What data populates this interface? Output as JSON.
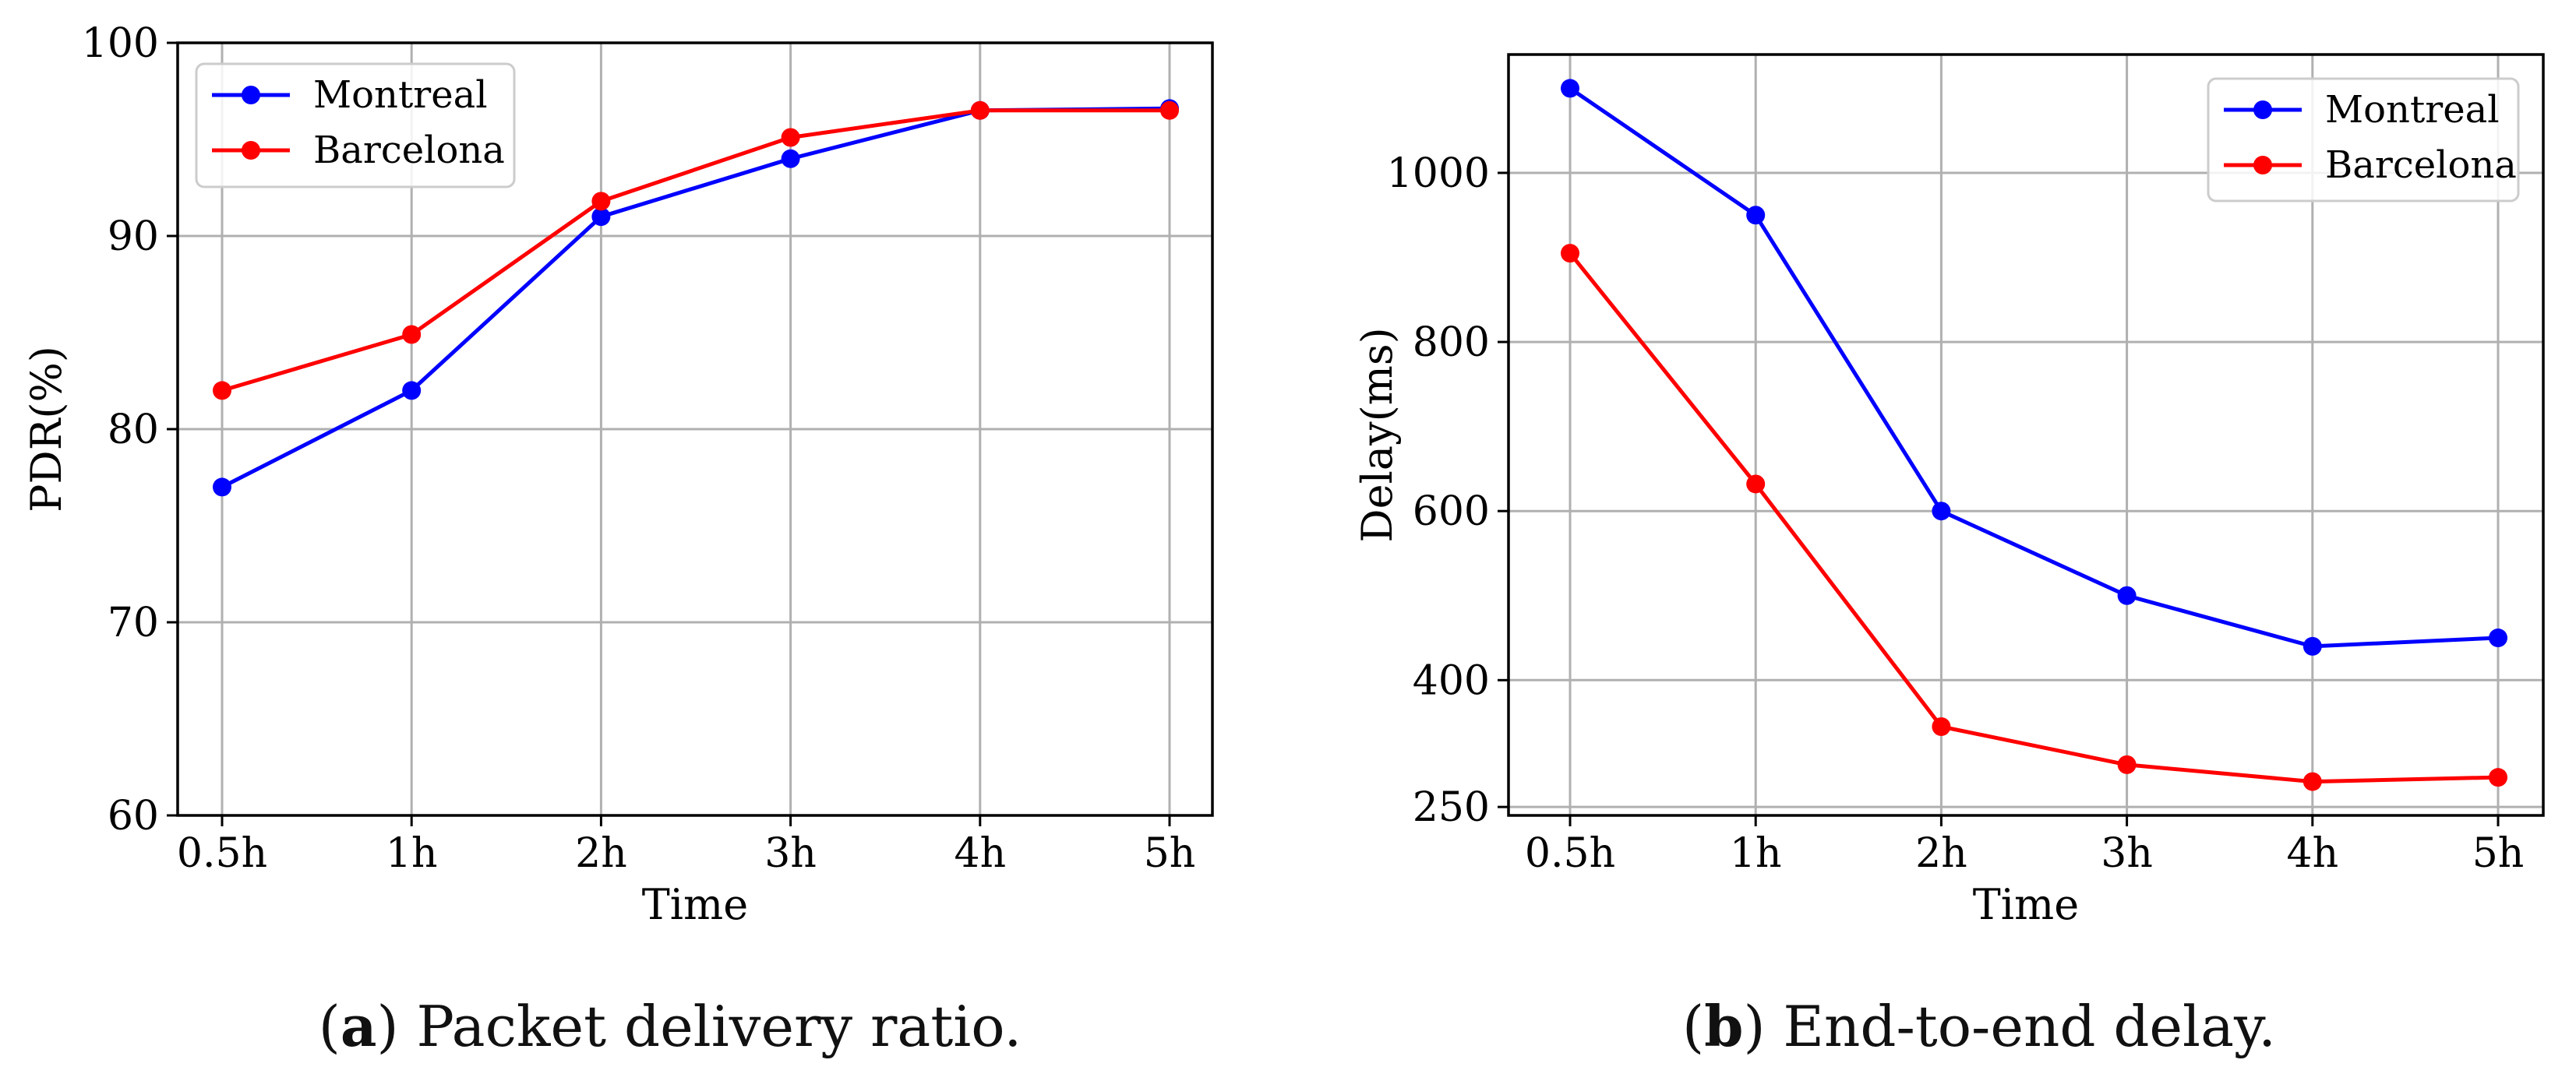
{
  "chart_data": [
    {
      "type": "line",
      "panel": "a",
      "title": "",
      "xlabel": "Time",
      "ylabel": "PDR(%)",
      "categories": [
        "0.5h",
        "1h",
        "2h",
        "3h",
        "4h",
        "5h"
      ],
      "ylim": [
        60,
        100
      ],
      "yticks": [
        60,
        70,
        80,
        90,
        100
      ],
      "grid": true,
      "legend": "top-left",
      "series": [
        {
          "name": "Montreal",
          "color": "#0000ff",
          "values": [
            77,
            82,
            91,
            94,
            96.5,
            96.6
          ]
        },
        {
          "name": "Barcelona",
          "color": "#ff0000",
          "values": [
            82,
            84.9,
            91.8,
            95.1,
            96.5,
            96.5
          ]
        }
      ],
      "caption_letter": "a",
      "caption_text": "Packet delivery ratio."
    },
    {
      "type": "line",
      "panel": "b",
      "title": "",
      "xlabel": "Time",
      "ylabel": "Delay(ms)",
      "categories": [
        "0.5h",
        "1h",
        "2h",
        "3h",
        "4h",
        "5h"
      ],
      "ylim": [
        240,
        1140
      ],
      "yticks": [
        250,
        400,
        600,
        800,
        1000
      ],
      "grid": true,
      "legend": "top-right",
      "series": [
        {
          "name": "Montreal",
          "color": "#0000ff",
          "values": [
            1100,
            950,
            600,
            500,
            440,
            450
          ]
        },
        {
          "name": "Barcelona",
          "color": "#ff0000",
          "values": [
            905,
            632,
            345,
            300,
            280,
            285
          ]
        }
      ],
      "caption_letter": "b",
      "caption_text": "End-to-end delay."
    }
  ]
}
